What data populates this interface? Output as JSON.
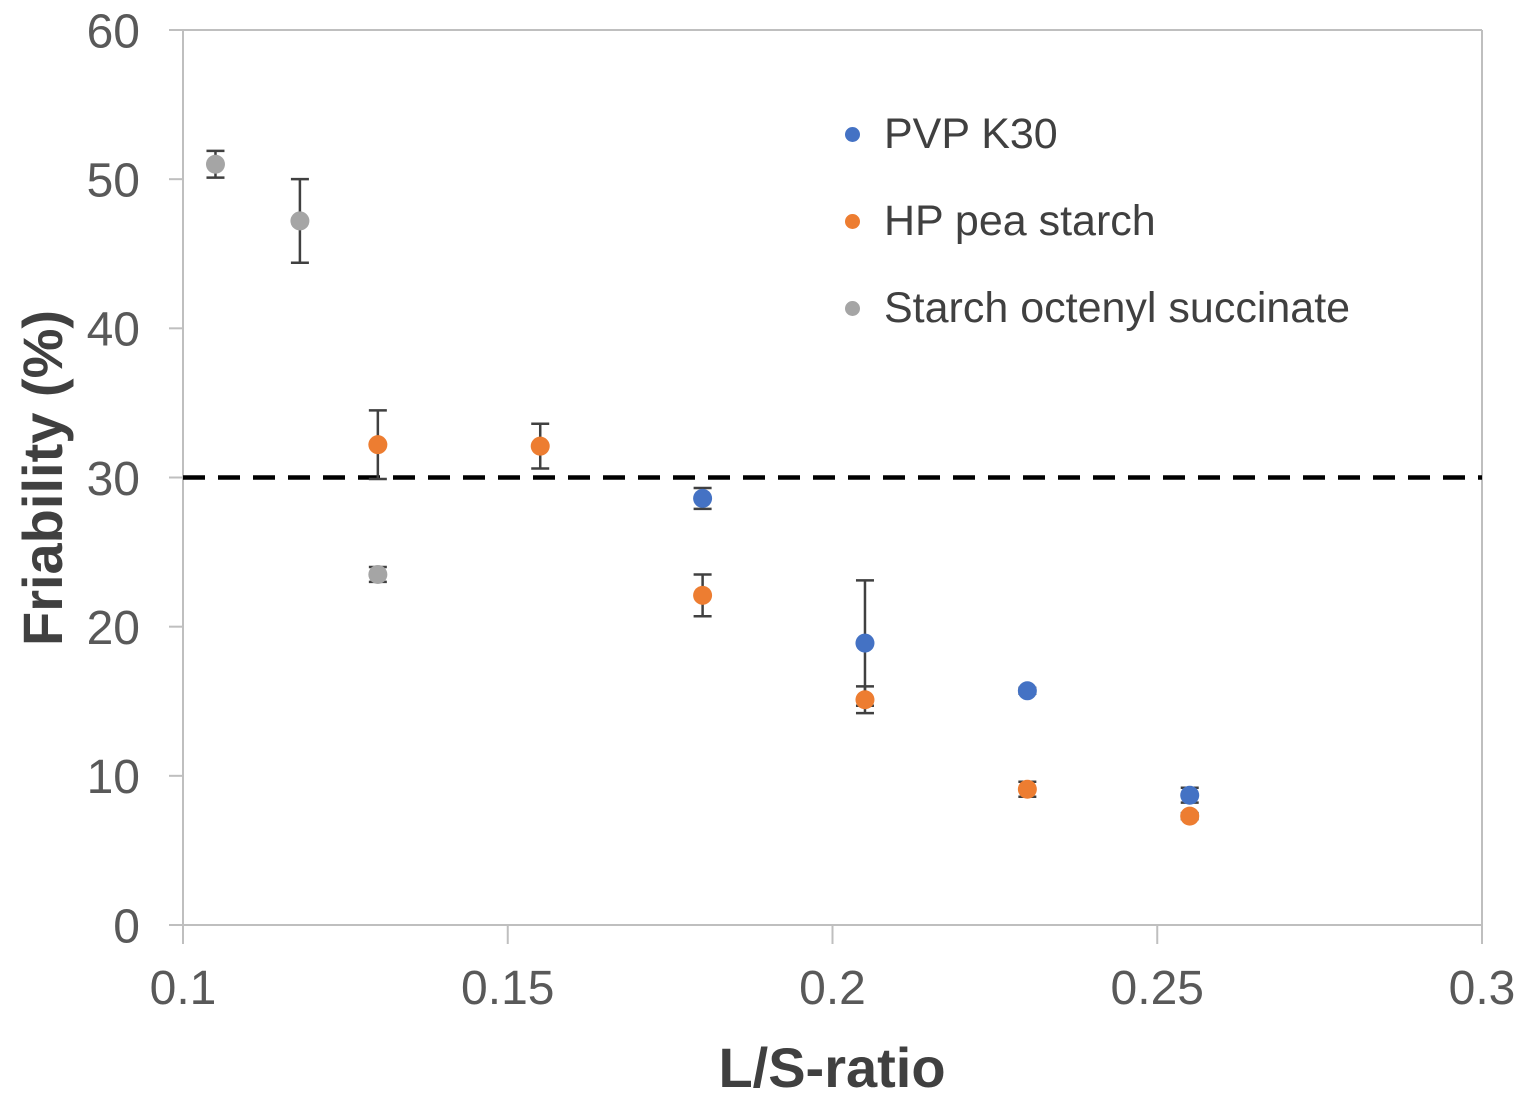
{
  "chart_data": {
    "type": "scatter",
    "xlabel": "L/S-ratio",
    "ylabel": "Friability (%)",
    "xlim": [
      0.1,
      0.3
    ],
    "ylim": [
      0,
      60
    ],
    "x_ticks": [
      0.1,
      0.15,
      0.2,
      0.25,
      0.3
    ],
    "x_tick_labels": [
      "0.1",
      "0.15",
      "0.2",
      "0.25",
      "0.3"
    ],
    "y_ticks": [
      0,
      10,
      20,
      30,
      40,
      50,
      60
    ],
    "y_tick_labels": [
      "0",
      "10",
      "20",
      "30",
      "40",
      "50",
      "60"
    ],
    "grid": false,
    "legend_position": "inside-upper-right",
    "threshold_line": {
      "y": 30,
      "style": "dashed",
      "color": "#000000"
    },
    "series": [
      {
        "name": "PVP K30",
        "color": "#4472C4",
        "x": [
          0.18,
          0.205,
          0.23,
          0.255
        ],
        "y": [
          28.6,
          18.9,
          15.7,
          8.7
        ],
        "yerr": [
          0.7,
          4.2,
          0.2,
          0.5
        ]
      },
      {
        "name": "HP pea starch",
        "color": "#ED7D31",
        "x": [
          0.13,
          0.155,
          0.18,
          0.205,
          0.23,
          0.255
        ],
        "y": [
          32.2,
          32.1,
          22.1,
          15.1,
          9.1,
          7.3
        ],
        "yerr": [
          2.3,
          1.5,
          1.4,
          0.9,
          0.5,
          0.2
        ]
      },
      {
        "name": "Starch octenyl succinate",
        "color": "#A5A5A5",
        "x": [
          0.105,
          0.118,
          0.13
        ],
        "y": [
          51.0,
          47.2,
          23.5
        ],
        "yerr": [
          0.9,
          2.8,
          0.5
        ]
      }
    ],
    "marker_shape": "circle",
    "error_bar_color": "#404040",
    "axis_color": "#BFBFBF",
    "tick_text_color": "#595959",
    "title_text_color": "#404040"
  }
}
